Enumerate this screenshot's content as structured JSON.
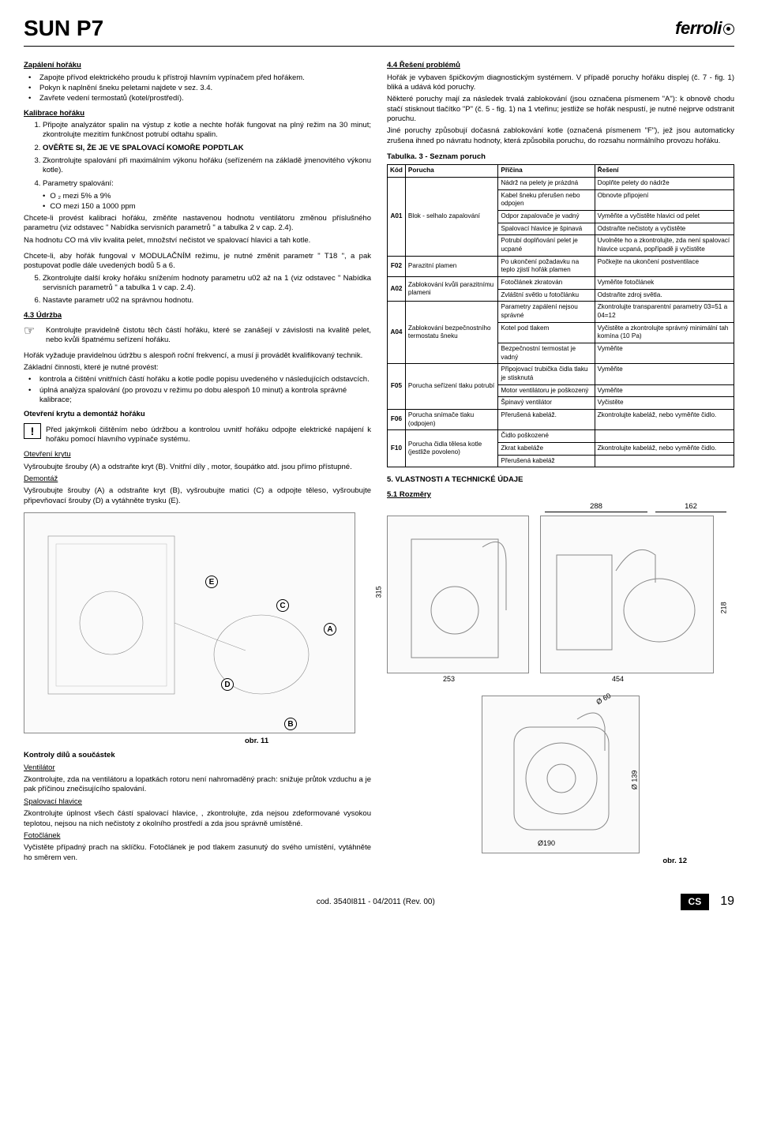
{
  "header": {
    "product": "SUN P7",
    "brand": "ferroli"
  },
  "left": {
    "sec_zapaleni": "Zapálení  hořáku",
    "zapaleni_items": [
      "Zapojte přívod elektrického proudu k přístroji  hlavním vypínačem před hořákem.",
      "Pokyn k naplnění šneku peletami najdete v sez. 3.4.",
      "Zavřete vedení termostatů (kotel/prostředí)."
    ],
    "sec_kalibrace": "Kalibrace  hořáku",
    "kalibrace_steps": [
      "Připojte analyzátor spalin na výstup z kotle a nechte hořák fungovat na plný režim na  30 minut; zkontrolujte mezitím funkčnost  potrubí odtahu spalin.",
      "OVĚŘTE SI, ŽE JE VE SPALOVACÍ KOMOŘE  POPDTLAK",
      "Zkontrolujte spalování při maximálním výkonu hořáku  (seřízeném na základě jmenovitého výkonu kotle).",
      "Parametry spalování:"
    ],
    "params_sub": [
      "O ₂ mezi 5% a  9%",
      "CO mezi 150 a 1000 ppm"
    ],
    "p_kalib1": "Chcete-li provést kalibraci hořáku, změňte nastavenou hodnotu ventilátoru  změnou příslušného parametru (viz odstavec \" Nabídka  servisních parametrů \" a tabulka 2 v cap. 2.4).",
    "p_kalib2": "Na hodnotu CO má vliv kvalita pelet,  množství nečistot ve spalovací hlavici a tah kotle.",
    "p_kalib3": "Chcete-li, aby hořák fungoval v MODULAČNÍM  režimu,  je nutné změnit parametr \" T18 \", a pak postupovat podle dále uvedených bodů  5 a 6.",
    "kalibrace_steps_56": [
      "Zkontrolujte další kroky hořáku snížením  hodnoty parametru u02 až na 1 (viz odstavec \" Nabídka  servisních parametrů \" a tabulka 1 v cap. 2.4).",
      "Nastavte parametr u02 na správnou hodnotu."
    ],
    "sec_udrzba": "4.3  Údržba",
    "udrzba_hand": "Kontrolujte pravidelně čistotu těch částí hořáku, které se zanášejí v závislosti na kvalitě pelet, nebo kvůli špatnému seřízení hořáku.",
    "udrzba_p1": "Hořák vyžaduje pravidelnou údržbu s alespoň roční frekvencí, a musí ji provádět kvalifikovaný technik.",
    "udrzba_p2": "Základní činnosti, které je nutné provést:",
    "udrzba_items": [
      "kontrola a čištění vnitřních částí hořáku a kotle podle popisu uvedeného v následujících odstavcích.",
      "úplná analýza spalování (po provozu v režimu po dobu alespoň 10 minut) a kontrola správné kalibrace;"
    ],
    "sec_otev": "Otevření krytu a demontáž hořáku",
    "otev_warn": "Před jakýmkoli čištěním nebo údržbou a kontrolou uvnitř hořáku odpojte elektrické napájení k hořáku pomocí hlavního vypínače systému.",
    "otev_kryt_h": "Otevření  krytu",
    "otev_kryt_p": "Vyšroubujte šrouby (A) a odstraňte kryt (B). Vnitřní díly , motor, šoupátko atd. jsou přímo přístupné.",
    "demontaz_h": "Demontáž",
    "demontaz_p": "Vyšroubujte šrouby (A) a odstraňte kryt (B), vyšroubujte matici (C) a odpojte těleso, vyšroubujte připevňovací šrouby (D) a vytáhněte trysku (E).",
    "fig11": "obr. 11",
    "sec_kontroly": "Kontroly  dílů a součástek",
    "vent_h": "Ventilátor",
    "vent_p": "Zkontrolujte, zda na ventilátoru a lopatkách  rotoru není nahromaděný prach: snižuje průtok vzduchu a  je pak příčinou znečisujícího spalování.",
    "spal_h": "Spalovací  hlavice",
    "spal_p": "Zkontrolujte úplnost všech částí spalovací hlavice, , zkontrolujte, zda nejsou zdeformované vysokou teplotou, nejsou na nich nečistoty z okolního prostředí a zda jsou správně umístěné.",
    "foto_h": "Fotočlánek",
    "foto_p": "Vyčistěte případný prach na sklíčku. Fotočlánek  je pod tlakem zasunutý do svého umístění, vytáhněte ho směrem ven."
  },
  "right": {
    "sec_res": "4.4  Řešení problémů",
    "res_p1": "Hořák je vybaven špičkovým diagnostickým systémem. V případě  poruchy hořáku displej (č. 7 - fig. 1) bliká a udává kód poruchy.",
    "res_p2": "Některé poruchy mají za následek trvalá zablokování (jsou označena písmenem \"A\"): k obnově chodu stačí stisknout tlačítko \"P\" (č. 5 - fig. 1) na 1 vteřinu; jestliže se hořák nespustí, je nutné nejprve odstranit poruchu.",
    "res_p3": "Jiné poruchy způsobují dočasná zablokování kotle (označená písmenem \"F\"), jež jsou automaticky zrušena ihned po návratu hodnoty, která způsobila poruchu, do rozsahu normálního provozu hořáku.",
    "tbl_title": "Tabulka. 3 - Seznam poruch",
    "tbl_headers": [
      "Kód",
      "Porucha",
      "Příčina",
      "Řešení"
    ],
    "faults": [
      {
        "code": "A01",
        "fault": "Blok - selhalo zapalování",
        "rows": [
          [
            "Nádrž na pelety je prázdná",
            "Doplňte pelety do nádrže"
          ],
          [
            "Kabel šneku přerušen nebo odpojen",
            "Obnovte připojení"
          ],
          [
            "Odpor zapalovače je vadný",
            "Vyměňte a vyčistěte hlavici od pelet"
          ],
          [
            "Spalovací hlavice je špinavá",
            "Odstraňte nečistoty a vyčistěte"
          ],
          [
            "Potrubí doplňování pelet je ucpané",
            "Uvolněte ho a zkontrolujte, zda není spalovací hlavice ucpaná, popřípadě ji vyčistěte"
          ]
        ]
      },
      {
        "code": "F02",
        "fault": "Parazitní plamen",
        "rows": [
          [
            "Po ukončení požadavku na teplo zjistí hořák plamen",
            "Počkejte na ukončení postventilace"
          ]
        ]
      },
      {
        "code": "A02",
        "fault": "Zablokování kvůli parazitnímu plameni",
        "rows": [
          [
            "Fotočlánek zkratován",
            "Vyměňte fotočlánek"
          ],
          [
            "Zvláštní světlo u fotočlánku",
            "Odstraňte zdroj světla."
          ]
        ]
      },
      {
        "code": "A04",
        "fault": "Zablokování bezpečnostního termostatu šneku",
        "rows": [
          [
            "Parametry zapálení nejsou správné",
            "Zkontrolujte transparentní parametry 03=51 a 04=12"
          ],
          [
            "Kotel pod tlakem",
            "Vyčistěte a zkontrolujte správný minimální tah komína (10 Pa)"
          ],
          [
            "Bezpečnostní termostat je vadný",
            "Vyměňte"
          ]
        ]
      },
      {
        "code": "F05",
        "fault": "Porucha seřízení tlaku potrubí",
        "rows": [
          [
            "Připojovací trubička čidla tlaku je stisknutá",
            "Vyměňte"
          ],
          [
            "Motor ventilátoru je poškozený",
            "Vyměňte"
          ],
          [
            "Špinavý ventilátor",
            "Vyčistěte"
          ]
        ]
      },
      {
        "code": "F06",
        "fault": "Porucha snímače tlaku (odpojen)",
        "rows": [
          [
            "Přerušená kabeláž.",
            "Zkontrolujte kabeláž, nebo vyměňte čidlo."
          ]
        ]
      },
      {
        "code": "F10",
        "fault": "Porucha čidla tělesa kotle (jestliže povoleno)",
        "rows": [
          [
            "Čidlo poškozené",
            ""
          ],
          [
            "Zkrat kabeláže",
            "Zkontrolujte kabeláž, nebo vyměňte čidlo."
          ],
          [
            "Přerušená kabeláž",
            ""
          ]
        ]
      }
    ],
    "sec_vlast": "5.  VLASTNOSTI A TECHNICKÉ ÚDAJE",
    "sec_rozm": "5.1  Rozměry",
    "dims": {
      "w1": "288",
      "w2": "162",
      "h1": "315",
      "h2": "218",
      "d1": "253",
      "d2": "454",
      "diam1": "Ø 60",
      "diam2": "Ø190",
      "diam3": "Ø 139"
    },
    "fig12": "obr. 12"
  },
  "footer": {
    "code": "cod. 3540I811  -  04/2011  (Rev. 00)",
    "lang": "CS",
    "page": "19"
  },
  "colors": {
    "text": "#000000",
    "bg": "#ffffff",
    "border": "#000000",
    "diag_fill": "#fafafa"
  }
}
